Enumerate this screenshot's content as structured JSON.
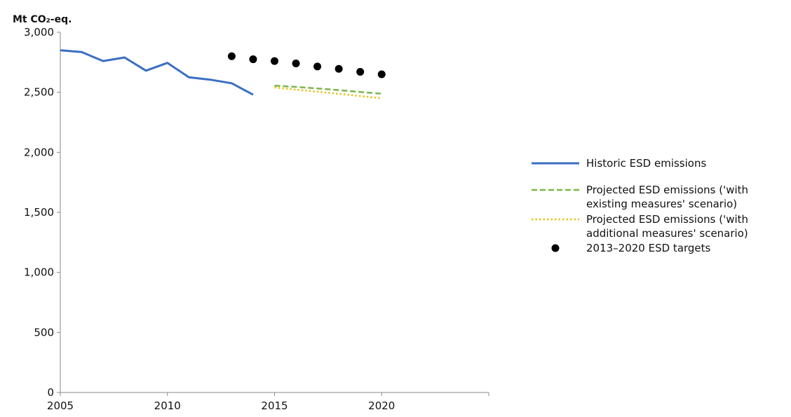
{
  "chart_data": {
    "type": "line",
    "ylabel": "Mt CO₂-eq.",
    "ylim": [
      0,
      3000
    ],
    "xlim": [
      2005,
      2025
    ],
    "y_ticks": [
      "0",
      "500",
      "1,000",
      "1,500",
      "2,000",
      "2,500",
      "3,000"
    ],
    "y_tick_values": [
      0,
      500,
      1000,
      1500,
      2000,
      2500,
      3000
    ],
    "x_ticks": [
      "2005",
      "2010",
      "2015",
      "2020"
    ],
    "x_tick_values": [
      2005,
      2010,
      2015,
      2020
    ],
    "grid": false,
    "legend_position": "right",
    "series": [
      {
        "name": "Historic ESD emissions",
        "style": "solid",
        "color": "#3a6fc4",
        "x": [
          2005,
          2006,
          2007,
          2008,
          2009,
          2010,
          2011,
          2012,
          2013,
          2014
        ],
        "values": [
          2850,
          2835,
          2760,
          2790,
          2680,
          2745,
          2625,
          2605,
          2575,
          2480
        ]
      },
      {
        "name_lines": [
          "Projected ESD emissions ('with",
          "existing measures' scenario)"
        ],
        "style": "dashed",
        "color": "#7ab648",
        "x": [
          2015,
          2016,
          2017,
          2018,
          2019,
          2020
        ],
        "values": [
          2555,
          2545,
          2532,
          2518,
          2503,
          2488
        ]
      },
      {
        "name_lines": [
          "Projected ESD emissions ('with",
          "additional measures' scenario)"
        ],
        "style": "dotted",
        "color": "#e8c21c",
        "x": [
          2015,
          2016,
          2017,
          2018,
          2019,
          2020
        ],
        "values": [
          2540,
          2522,
          2505,
          2487,
          2468,
          2450
        ]
      },
      {
        "name": "2013–2020 ESD targets",
        "style": "markers",
        "color": "#000000",
        "x": [
          2013,
          2014,
          2015,
          2016,
          2017,
          2018,
          2019,
          2020
        ],
        "values": [
          2800,
          2775,
          2760,
          2740,
          2715,
          2695,
          2670,
          2650
        ]
      }
    ]
  }
}
